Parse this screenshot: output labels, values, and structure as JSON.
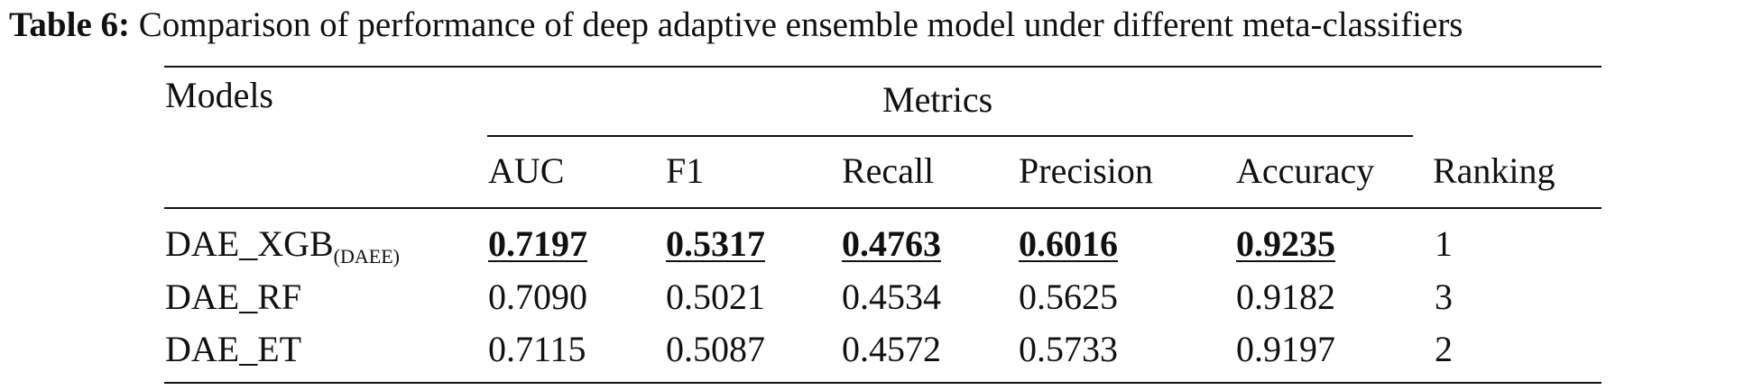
{
  "caption": {
    "label": "Table 6:",
    "text": " Comparison of performance of deep adaptive ensemble model under different meta-classifiers"
  },
  "table": {
    "header": {
      "models": "Models",
      "metrics": "Metrics",
      "columns": [
        "AUC",
        "F1",
        "Recall",
        "Precision",
        "Accuracy"
      ],
      "ranking": "Ranking"
    },
    "rows": [
      {
        "model": "DAE_XGB",
        "model_subscript": "(DAEE)",
        "values": [
          "0.7197",
          "0.5317",
          "0.4763",
          "0.6016",
          "0.9235"
        ],
        "ranking": "1",
        "best": true
      },
      {
        "model": "DAE_RF",
        "model_subscript": "",
        "values": [
          "0.7090",
          "0.5021",
          "0.4534",
          "0.5625",
          "0.9182"
        ],
        "ranking": "3",
        "best": false
      },
      {
        "model": "DAE_ET",
        "model_subscript": "",
        "values": [
          "0.7115",
          "0.5087",
          "0.4572",
          "0.5733",
          "0.9197"
        ],
        "ranking": "2",
        "best": false
      }
    ]
  }
}
